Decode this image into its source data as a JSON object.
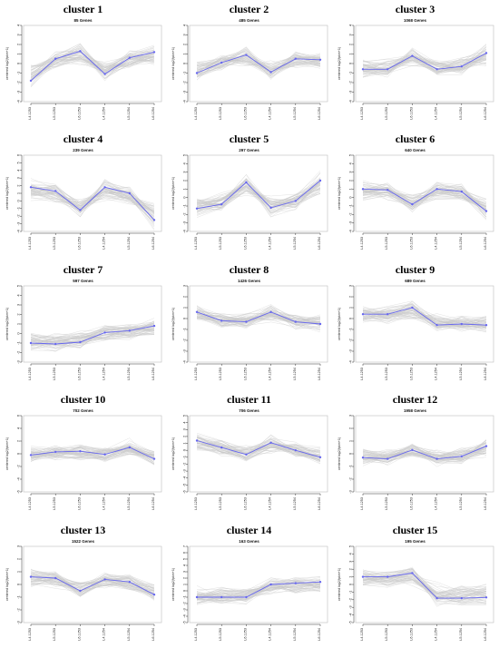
{
  "chart_data": [
    {
      "type": "line",
      "title": "cluster 1",
      "subtitle": "85 Genes",
      "ylabel": "centered log2(fpkm+1)",
      "categories": [
        "L4.1253",
        "L5.1253",
        "L6.1253",
        "L4.1254",
        "L5.1254",
        "L6.1254"
      ],
      "ylim": [
        -4,
        4
      ],
      "yticks": [
        -4,
        -3,
        -2,
        -1,
        0,
        1,
        2,
        3,
        4
      ],
      "series": [
        {
          "values": [
            -1.8,
            0.5,
            1.3,
            -1.1,
            0.6,
            1.2
          ]
        }
      ]
    },
    {
      "type": "line",
      "title": "cluster 2",
      "subtitle": "485 Genes",
      "ylabel": "centered log2(fpkm+1)",
      "categories": [
        "L4.1253",
        "L5.1253",
        "L6.1253",
        "L4.1254",
        "L5.1254",
        "L6.1254"
      ],
      "ylim": [
        -4,
        4
      ],
      "yticks": [
        -4,
        -3,
        -2,
        -1,
        0,
        1,
        2,
        3,
        4
      ],
      "series": [
        {
          "values": [
            -1.0,
            0.1,
            0.9,
            -0.9,
            0.5,
            0.4
          ]
        }
      ]
    },
    {
      "type": "line",
      "title": "cluster 3",
      "subtitle": "1068 Genes",
      "ylabel": "centered log2(fpkm+1)",
      "categories": [
        "L4.1253",
        "L5.1253",
        "L6.1253",
        "L4.1254",
        "L5.1254",
        "L6.1254"
      ],
      "ylim": [
        -4,
        4
      ],
      "yticks": [
        -4,
        -3,
        -2,
        -1,
        0,
        1,
        2,
        3,
        4
      ],
      "series": [
        {
          "values": [
            -0.6,
            -0.6,
            0.8,
            -0.6,
            -0.3,
            1.1
          ]
        }
      ]
    },
    {
      "type": "line",
      "title": "cluster 4",
      "subtitle": "239 Genes",
      "ylabel": "centered log2(fpkm+1)",
      "categories": [
        "L4.1253",
        "L5.1253",
        "L6.1253",
        "L4.1254",
        "L5.1254",
        "L6.1254"
      ],
      "ylim": [
        -4,
        6
      ],
      "yticks": [
        -4,
        -3,
        -2,
        -1,
        0,
        1,
        2,
        3,
        4,
        5,
        6
      ],
      "series": [
        {
          "values": [
            1.8,
            1.3,
            -1.2,
            1.8,
            1.0,
            -2.5
          ]
        }
      ]
    },
    {
      "type": "line",
      "title": "cluster 5",
      "subtitle": "297 Genes",
      "ylabel": "centered log2(fpkm+1)",
      "categories": [
        "L4.1253",
        "L5.1253",
        "L6.1253",
        "L4.1254",
        "L5.1254",
        "L6.1254"
      ],
      "ylim": [
        -4,
        5
      ],
      "yticks": [
        -4,
        -3,
        -2,
        -1,
        0,
        1,
        2,
        3,
        4,
        5
      ],
      "series": [
        {
          "values": [
            -1.3,
            -0.8,
            1.8,
            -1.2,
            -0.4,
            2.0
          ]
        }
      ]
    },
    {
      "type": "line",
      "title": "cluster 6",
      "subtitle": "640 Genes",
      "ylabel": "centered log2(fpkm+1)",
      "categories": [
        "L4.1253",
        "L5.1253",
        "L6.1253",
        "L4.1254",
        "L5.1254",
        "L6.1254"
      ],
      "ylim": [
        -4,
        5
      ],
      "yticks": [
        -4,
        -3,
        -2,
        -1,
        0,
        1,
        2,
        3,
        4,
        5
      ],
      "series": [
        {
          "values": [
            1.0,
            0.9,
            -0.8,
            1.0,
            0.7,
            -1.6
          ]
        }
      ]
    },
    {
      "type": "line",
      "title": "cluster 7",
      "subtitle": "597 Genes",
      "ylabel": "centered log2(fpkm+1)",
      "categories": [
        "L4.1253",
        "L5.1253",
        "L6.1253",
        "L4.1254",
        "L5.1254",
        "L6.1254"
      ],
      "ylim": [
        -3,
        5
      ],
      "yticks": [
        -3,
        -2,
        -1,
        0,
        1,
        2,
        3,
        4,
        5
      ],
      "series": [
        {
          "values": [
            -1.0,
            -1.1,
            -0.9,
            0.1,
            0.3,
            0.8
          ]
        }
      ]
    },
    {
      "type": "line",
      "title": "cluster 8",
      "subtitle": "1426 Genes",
      "ylabel": "centered log2(fpkm+1)",
      "categories": [
        "L4.1253",
        "L5.1253",
        "L6.1253",
        "L4.1254",
        "L5.1254",
        "L6.1254"
      ],
      "ylim": [
        -4,
        3
      ],
      "yticks": [
        -4,
        -3,
        -2,
        -1,
        0,
        1,
        2,
        3
      ],
      "series": [
        {
          "values": [
            0.6,
            -0.2,
            -0.3,
            0.6,
            -0.3,
            -0.5
          ]
        }
      ]
    },
    {
      "type": "line",
      "title": "cluster 9",
      "subtitle": "689 Genes",
      "ylabel": "centered log2(fpkm+1)",
      "categories": [
        "L4.1253",
        "L5.1253",
        "L6.1253",
        "L4.1254",
        "L5.1254",
        "L6.1254"
      ],
      "ylim": [
        -4,
        3
      ],
      "yticks": [
        -4,
        -3,
        -2,
        -1,
        0,
        1,
        2,
        3
      ],
      "series": [
        {
          "values": [
            0.4,
            0.4,
            1.0,
            -0.6,
            -0.5,
            -0.6
          ]
        }
      ]
    },
    {
      "type": "line",
      "title": "cluster 10",
      "subtitle": "702 Genes",
      "ylabel": "centered log2(fpkm+1)",
      "categories": [
        "L4.1253",
        "L5.1253",
        "L6.1253",
        "L4.1254",
        "L5.1254",
        "L6.1254"
      ],
      "ylim": [
        -6,
        6
      ],
      "yticks": [
        -6,
        -4,
        -2,
        0,
        2,
        4,
        6
      ],
      "series": [
        {
          "values": [
            -0.2,
            0.3,
            0.4,
            -0.1,
            1.0,
            -0.8
          ]
        }
      ]
    },
    {
      "type": "line",
      "title": "cluster 11",
      "subtitle": "706 Genes",
      "ylabel": "centered log2(fpkm+1)",
      "categories": [
        "L4.1253",
        "L5.1253",
        "L6.1253",
        "L4.1254",
        "L5.1254",
        "L6.1254"
      ],
      "ylim": [
        -6,
        5
      ],
      "yticks": [
        -6,
        -5,
        -4,
        -3,
        -2,
        -1,
        0,
        1,
        2,
        3,
        4,
        5
      ],
      "series": [
        {
          "values": [
            1.4,
            0.4,
            -0.6,
            1.1,
            0.0,
            -1.0
          ]
        }
      ]
    },
    {
      "type": "line",
      "title": "cluster 12",
      "subtitle": "1958 Genes",
      "ylabel": "centered log2(fpkm+1)",
      "categories": [
        "L4.1253",
        "L5.1253",
        "L6.1253",
        "L4.1254",
        "L5.1254",
        "L6.1254"
      ],
      "ylim": [
        -3,
        3
      ],
      "yticks": [
        -3,
        -2,
        -1,
        0,
        1,
        2,
        3
      ],
      "series": [
        {
          "values": [
            -0.3,
            -0.4,
            0.3,
            -0.4,
            -0.2,
            0.6
          ]
        }
      ]
    },
    {
      "type": "line",
      "title": "cluster 13",
      "subtitle": "1522 Genes",
      "ylabel": "centered log2(fpkm+1)",
      "categories": [
        "L4.1253",
        "L5.1253",
        "L6.1253",
        "L4.1254",
        "L5.1254",
        "L6.1254"
      ],
      "ylim": [
        -3,
        3
      ],
      "yticks": [
        -3,
        -2,
        -1,
        0,
        1,
        2,
        3
      ],
      "series": [
        {
          "values": [
            0.6,
            0.5,
            -0.5,
            0.4,
            0.2,
            -0.8
          ]
        }
      ]
    },
    {
      "type": "line",
      "title": "cluster 14",
      "subtitle": "163 Genes",
      "ylabel": "centered log2(fpkm+1)",
      "categories": [
        "L4.1253",
        "L5.1253",
        "L6.1253",
        "L4.1254",
        "L5.1254",
        "L6.1254"
      ],
      "ylim": [
        -5,
        7
      ],
      "yticks": [
        -5,
        -4,
        -3,
        -2,
        -1,
        0,
        1,
        2,
        3,
        4,
        5,
        6,
        7
      ],
      "series": [
        {
          "values": [
            -1.0,
            -1.0,
            -1.0,
            1.0,
            1.2,
            1.4
          ]
        }
      ]
    },
    {
      "type": "line",
      "title": "cluster 15",
      "subtitle": "195 Genes",
      "ylabel": "centered log2(fpkm+1)",
      "categories": [
        "L4.1253",
        "L5.1253",
        "L6.1253",
        "L4.1254",
        "L5.1254",
        "L6.1254"
      ],
      "ylim": [
        -5,
        5
      ],
      "yticks": [
        -5,
        -4,
        -3,
        -2,
        -1,
        0,
        1,
        2,
        3,
        4,
        5
      ],
      "series": [
        {
          "values": [
            1.0,
            1.0,
            1.5,
            -1.8,
            -1.8,
            -1.7
          ]
        }
      ]
    }
  ],
  "colors": {
    "center_line": "#6666ee",
    "gene_lines": "#c8c8c8",
    "axis": "#333333",
    "box": "#bdbdbd"
  }
}
